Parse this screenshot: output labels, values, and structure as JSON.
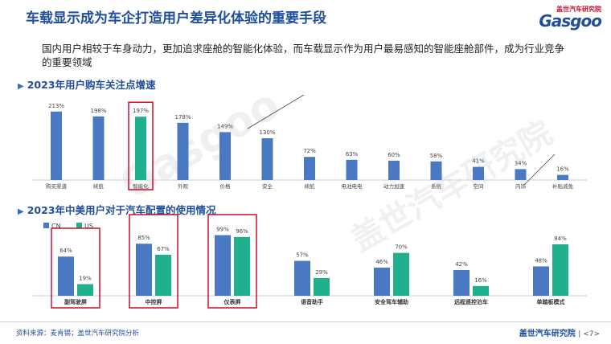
{
  "title": "车载显示成为车企打造用户差异化体验的重要手段",
  "subtitle": "国内用户相较于车身动力，更加追求座舱的智能化体验，而车载显示作为用户最易感知的智能座舱部件，成为行业竞争的重要领域",
  "logo": {
    "brand": "盖世汽车研究院",
    "word": "Gasgoo"
  },
  "watermark": {
    "cn": "盖世汽车研究院",
    "en": "Gasgoo"
  },
  "colors": {
    "title": "#1f4e9b",
    "blue": "#4a78c2",
    "teal": "#1fb08e",
    "highlight": "#c8102e"
  },
  "chart_data": [
    {
      "type": "bar",
      "title": "2023年用户购车关注点增速",
      "categories": [
        "购买渠道",
        "续航",
        "智能化",
        "外观",
        "价格",
        "安全",
        "续航",
        "电池电电",
        "动力加速",
        "系统",
        "空间",
        "内饰",
        "补贴减免"
      ],
      "values": [
        213,
        198,
        197,
        178,
        149,
        130,
        72,
        63,
        60,
        58,
        41,
        34,
        16
      ],
      "value_labels": [
        "213%",
        "198%",
        "197%",
        "178%",
        "149%",
        "130%",
        "72%",
        "63%",
        "60%",
        "58%",
        "41%",
        "34%",
        "16%"
      ],
      "highlight_index": 2,
      "ylim": [
        0,
        230
      ]
    },
    {
      "type": "bar",
      "title": "2023年中美用户对于汽车配置的使用情况",
      "categories": [
        "副驾驶屏",
        "中控屏",
        "仪表屏",
        "语音助手",
        "安全驾车辅助",
        "远程遥控泊车",
        "单踏板模式"
      ],
      "series": [
        {
          "name": "CN",
          "values": [
            64,
            85,
            99,
            57,
            46,
            42,
            48
          ]
        },
        {
          "name": "US",
          "values": [
            19,
            67,
            96,
            29,
            70,
            16,
            84
          ]
        }
      ],
      "value_labels": {
        "CN": [
          "64%",
          "85%",
          "99%",
          "57%",
          "46%",
          "42%",
          "48%"
        ],
        "US": [
          "19%",
          "67%",
          "96%",
          "29%",
          "70%",
          "16%",
          "84%"
        ]
      },
      "highlight_indices": [
        0,
        1,
        2
      ],
      "legend_position": "top-left",
      "ylim": [
        0,
        105
      ]
    }
  ],
  "footer": {
    "source": "资料来源：麦肯锡；盖世汽车研究院分析",
    "brand": "盖世汽车研究院",
    "page": "<7>"
  }
}
